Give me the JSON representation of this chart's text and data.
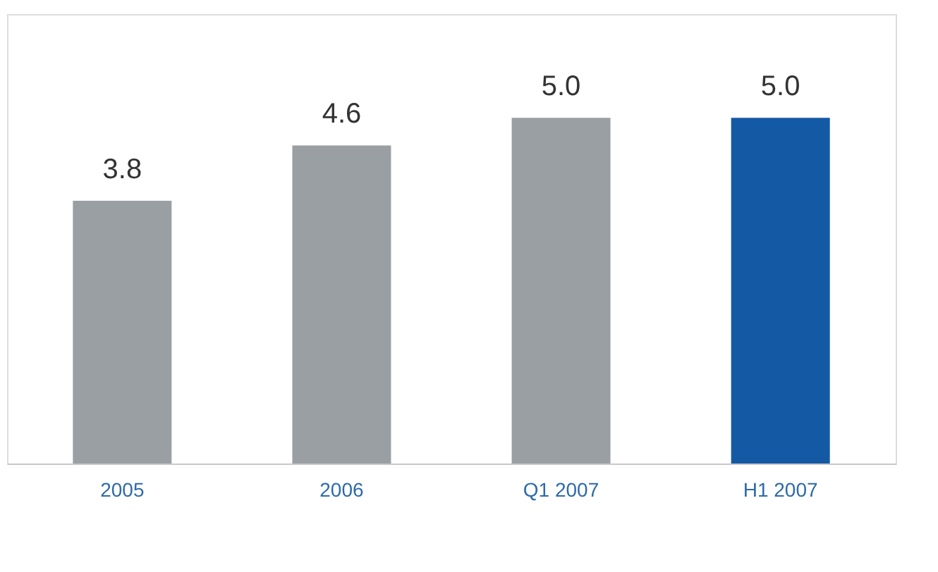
{
  "chart_data": {
    "type": "bar",
    "categories": [
      "2005",
      "2006",
      "Q1 2007",
      "H1 2007"
    ],
    "values": [
      3.8,
      4.6,
      5.0,
      5.0
    ],
    "colors": [
      "#9a9fa4",
      "#9a9fa4",
      "#9a9fa4",
      "#1459a4"
    ],
    "value_labels": [
      "3.8",
      "4.6",
      "5.0",
      "5.0"
    ],
    "ylim": [
      0,
      6.5
    ]
  }
}
